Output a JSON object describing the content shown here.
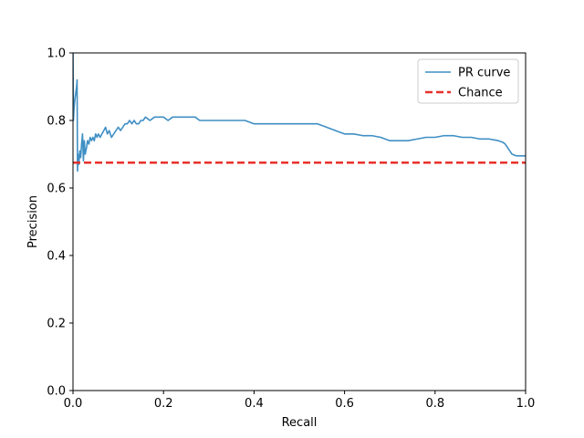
{
  "chart_data": {
    "type": "line",
    "title": "",
    "xlabel": "Recall",
    "ylabel": "Precision",
    "xlim": [
      0,
      1
    ],
    "ylim": [
      0,
      1
    ],
    "xticks": [
      "0.0",
      "0.2",
      "0.4",
      "0.6",
      "0.8",
      "1.0"
    ],
    "yticks": [
      "0.0",
      "0.2",
      "0.4",
      "0.6",
      "0.8",
      "1.0"
    ],
    "grid": false,
    "legend_position": "top-right",
    "series": [
      {
        "name": "PR curve",
        "style": "solid",
        "color": "#3f8fc4",
        "x": [
          0.0,
          0.001,
          0.002,
          0.004,
          0.006,
          0.008,
          0.009,
          0.01,
          0.011,
          0.013,
          0.015,
          0.017,
          0.019,
          0.021,
          0.023,
          0.025,
          0.027,
          0.03,
          0.032,
          0.035,
          0.038,
          0.041,
          0.044,
          0.047,
          0.05,
          0.053,
          0.056,
          0.06,
          0.064,
          0.068,
          0.072,
          0.076,
          0.08,
          0.085,
          0.09,
          0.095,
          0.1,
          0.105,
          0.11,
          0.115,
          0.12,
          0.125,
          0.13,
          0.135,
          0.14,
          0.145,
          0.15,
          0.155,
          0.16,
          0.17,
          0.18,
          0.19,
          0.2,
          0.21,
          0.22,
          0.23,
          0.24,
          0.25,
          0.26,
          0.27,
          0.28,
          0.3,
          0.32,
          0.34,
          0.36,
          0.38,
          0.4,
          0.42,
          0.44,
          0.46,
          0.48,
          0.5,
          0.52,
          0.53,
          0.54,
          0.55,
          0.56,
          0.57,
          0.58,
          0.59,
          0.6,
          0.62,
          0.64,
          0.66,
          0.68,
          0.7,
          0.72,
          0.74,
          0.76,
          0.78,
          0.8,
          0.82,
          0.84,
          0.86,
          0.88,
          0.9,
          0.92,
          0.94,
          0.95,
          0.955,
          0.96,
          0.965,
          0.97,
          0.98,
          0.99,
          1.0
        ],
        "y": [
          1.0,
          0.8,
          0.83,
          0.86,
          0.88,
          0.9,
          0.92,
          0.65,
          0.7,
          0.67,
          0.71,
          0.69,
          0.73,
          0.76,
          0.68,
          0.74,
          0.7,
          0.72,
          0.74,
          0.73,
          0.75,
          0.74,
          0.75,
          0.74,
          0.76,
          0.75,
          0.76,
          0.75,
          0.76,
          0.77,
          0.78,
          0.76,
          0.77,
          0.75,
          0.76,
          0.77,
          0.78,
          0.77,
          0.78,
          0.79,
          0.79,
          0.8,
          0.79,
          0.8,
          0.79,
          0.79,
          0.8,
          0.8,
          0.81,
          0.8,
          0.81,
          0.81,
          0.81,
          0.8,
          0.81,
          0.81,
          0.81,
          0.81,
          0.81,
          0.81,
          0.8,
          0.8,
          0.8,
          0.8,
          0.8,
          0.8,
          0.79,
          0.79,
          0.79,
          0.79,
          0.79,
          0.79,
          0.79,
          0.79,
          0.79,
          0.785,
          0.78,
          0.775,
          0.77,
          0.765,
          0.76,
          0.76,
          0.755,
          0.755,
          0.75,
          0.74,
          0.74,
          0.74,
          0.745,
          0.75,
          0.75,
          0.755,
          0.755,
          0.75,
          0.75,
          0.745,
          0.745,
          0.74,
          0.735,
          0.73,
          0.72,
          0.71,
          0.7,
          0.695,
          0.695,
          0.695
        ]
      },
      {
        "name": "Chance",
        "style": "dashed",
        "color": "#e8302a",
        "x": [
          0.0,
          1.0
        ],
        "y": [
          0.675,
          0.675
        ]
      }
    ]
  }
}
